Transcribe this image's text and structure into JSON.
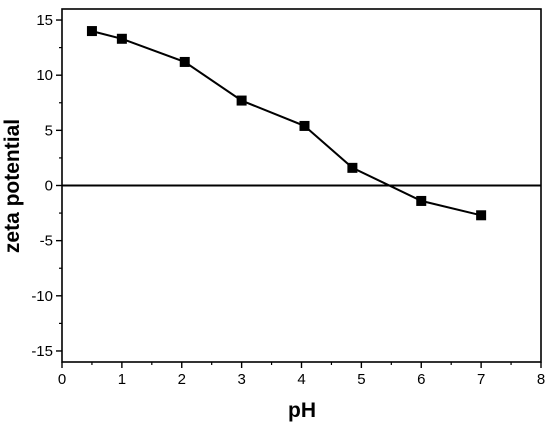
{
  "chart_data": {
    "type": "line",
    "title": "",
    "xlabel": "pH",
    "ylabel": "zeta potential",
    "xlim": [
      0,
      8
    ],
    "ylim": [
      -16,
      16
    ],
    "xticks": [
      0,
      1,
      2,
      3,
      4,
      5,
      6,
      7,
      8
    ],
    "xtick_labels": [
      "0",
      "1",
      "2",
      "3",
      "4",
      "5",
      "6",
      "7",
      "8"
    ],
    "yticks": [
      -15,
      -10,
      -5,
      0,
      5,
      10,
      15
    ],
    "ytick_labels": [
      "-15",
      "-10",
      "-5",
      "0",
      "5",
      "10",
      "15"
    ],
    "reference_line": {
      "y": 0
    },
    "grid": false,
    "legend": "none",
    "marker": "square",
    "color": "#000000",
    "series": [
      {
        "x": [
          0.5,
          1.0,
          2.05,
          3.0,
          4.05,
          4.85,
          6.0,
          7.0
        ],
        "y": [
          14.0,
          13.3,
          11.2,
          7.7,
          5.4,
          1.6,
          -1.4,
          -2.7
        ]
      }
    ]
  }
}
